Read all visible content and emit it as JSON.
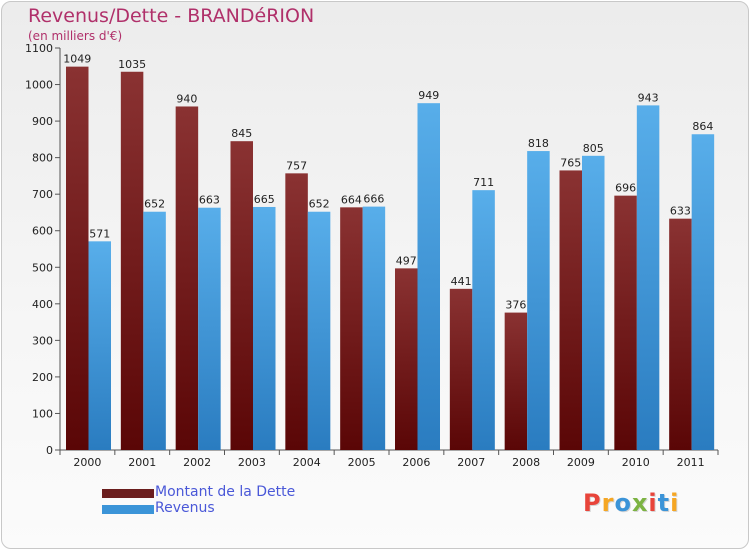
{
  "chart_data": {
    "type": "bar",
    "title": "Revenus/Dette - BRANDéRION",
    "unit_label": "(en milliers d'€)",
    "categories": [
      "2000",
      "2001",
      "2002",
      "2003",
      "2004",
      "2005",
      "2006",
      "2007",
      "2008",
      "2009",
      "2010",
      "2011"
    ],
    "series": [
      {
        "name": "Montant de la Dette",
        "color": "#6b1e1e",
        "values": [
          1049,
          1035,
          940,
          845,
          757,
          664,
          497,
          441,
          376,
          765,
          696,
          633
        ]
      },
      {
        "name": "Revenus",
        "color": "#3b94d8",
        "values": [
          571,
          652,
          663,
          665,
          652,
          666,
          949,
          711,
          818,
          805,
          943,
          864
        ]
      }
    ],
    "ylim": [
      0,
      1100
    ],
    "yticks": [
      0,
      100,
      200,
      300,
      400,
      500,
      600,
      700,
      800,
      900,
      1000,
      1100
    ],
    "grid": false,
    "legend_position": "bottom-left"
  },
  "branding": {
    "logo_text": "Proxiti",
    "logo_colors": [
      "#e8443a",
      "#f5a623",
      "#3b94d8",
      "#7cb342",
      "#e8443a",
      "#3b94d8",
      "#f5a623"
    ]
  }
}
